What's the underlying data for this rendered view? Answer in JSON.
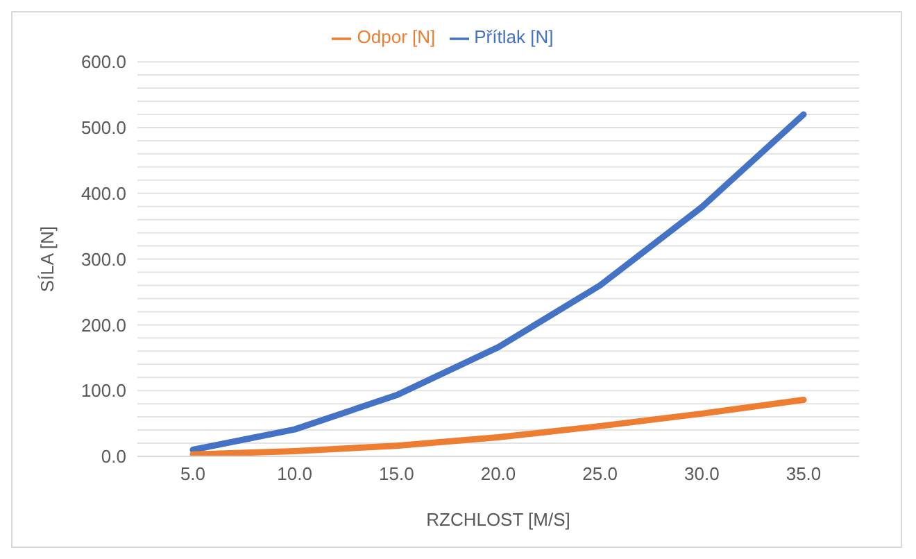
{
  "chart_data": {
    "type": "line",
    "xlabel": "RZCHLOST [M/S]",
    "ylabel": "SÍLA [N]",
    "categories": [
      "5.0",
      "10.0",
      "15.0",
      "20.0",
      "25.0",
      "30.0",
      "35.0"
    ],
    "series": [
      {
        "name": "Přítlak [N]",
        "color": "#4472c4",
        "values": [
          10,
          41,
          93,
          166,
          260,
          379,
          520
        ]
      },
      {
        "name": "Odpor [N]",
        "color": "#ed7d31",
        "values": [
          3,
          8,
          16,
          29,
          46,
          65,
          86
        ]
      }
    ],
    "ylim": [
      0,
      600
    ],
    "yticks": [
      {
        "value": 0,
        "label": "0.0"
      },
      {
        "value": 20,
        "label": null
      },
      {
        "value": 40,
        "label": null
      },
      {
        "value": 60,
        "label": null
      },
      {
        "value": 80,
        "label": null
      },
      {
        "value": 100,
        "label": "100.0"
      },
      {
        "value": 120,
        "label": null
      },
      {
        "value": 140,
        "label": null
      },
      {
        "value": 160,
        "label": null
      },
      {
        "value": 180,
        "label": null
      },
      {
        "value": 200,
        "label": "200.0"
      },
      {
        "value": 220,
        "label": null
      },
      {
        "value": 240,
        "label": null
      },
      {
        "value": 260,
        "label": null
      },
      {
        "value": 280,
        "label": null
      },
      {
        "value": 300,
        "label": "300.0"
      },
      {
        "value": 320,
        "label": null
      },
      {
        "value": 340,
        "label": null
      },
      {
        "value": 360,
        "label": null
      },
      {
        "value": 380,
        "label": null
      },
      {
        "value": 400,
        "label": "400.0"
      },
      {
        "value": 420,
        "label": null
      },
      {
        "value": 440,
        "label": null
      },
      {
        "value": 460,
        "label": null
      },
      {
        "value": 480,
        "label": null
      },
      {
        "value": 500,
        "label": "500.0"
      },
      {
        "value": 520,
        "label": null
      },
      {
        "value": 540,
        "label": null
      },
      {
        "value": 560,
        "label": null
      },
      {
        "value": 580,
        "label": null
      },
      {
        "value": 600,
        "label": "600.0"
      }
    ],
    "grid": "y",
    "legend": "top",
    "marker": "none",
    "line_style": "solid"
  }
}
